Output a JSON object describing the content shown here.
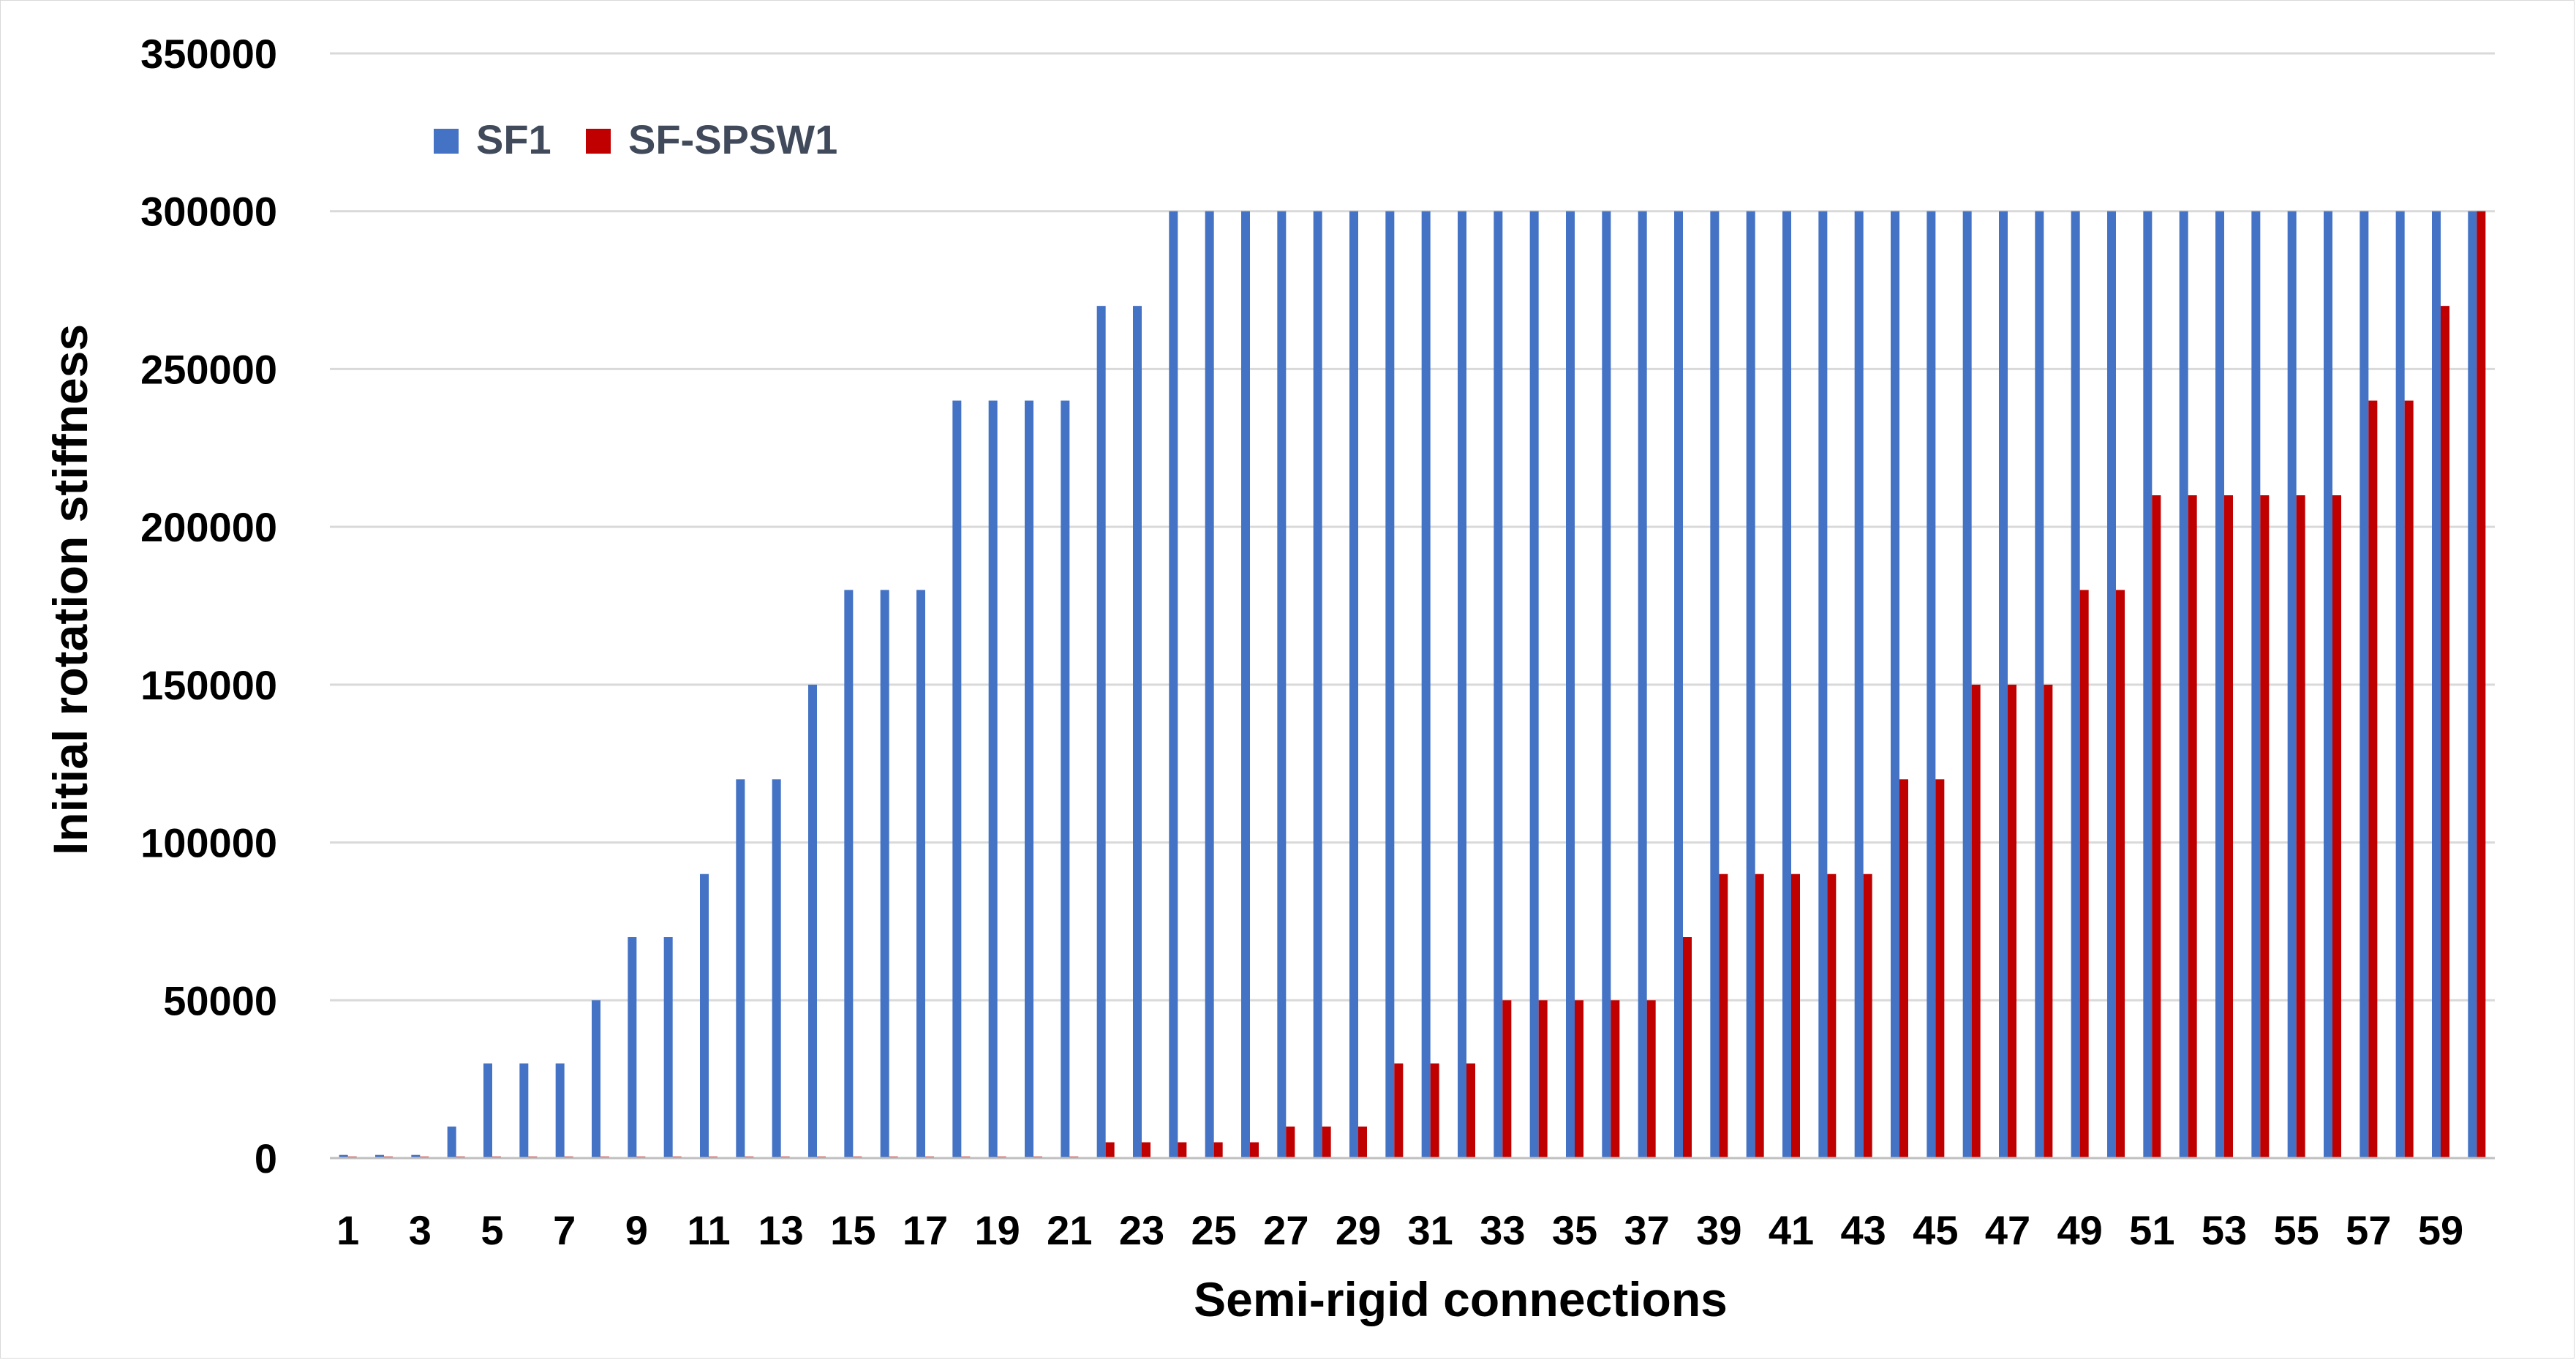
{
  "chart_data": {
    "type": "bar",
    "title": "",
    "xlabel": "Semi-rigid connections",
    "ylabel": "Initial  rotation stiffness",
    "ylim": [
      0,
      350000
    ],
    "yticks": [
      0,
      50000,
      100000,
      150000,
      200000,
      250000,
      300000,
      350000
    ],
    "ytick_labels": [
      "0",
      "50000",
      "100000",
      "150000",
      "200000",
      "250000",
      "300000",
      "350000"
    ],
    "grid": true,
    "legend_position": "top-left",
    "categories": [
      "1",
      "2",
      "3",
      "4",
      "5",
      "6",
      "7",
      "8",
      "9",
      "10",
      "11",
      "12",
      "13",
      "14",
      "15",
      "16",
      "17",
      "18",
      "19",
      "20",
      "21",
      "22",
      "23",
      "24",
      "25",
      "26",
      "27",
      "28",
      "29",
      "30",
      "31",
      "32",
      "33",
      "34",
      "35",
      "36",
      "37",
      "38",
      "39",
      "40",
      "41",
      "42",
      "43",
      "44",
      "45",
      "46",
      "47",
      "48",
      "49",
      "50",
      "51",
      "52",
      "53",
      "54",
      "55",
      "56",
      "57",
      "58",
      "59",
      "60"
    ],
    "xtick_labels": [
      "1",
      "3",
      "5",
      "7",
      "9",
      "11",
      "13",
      "15",
      "17",
      "19",
      "21",
      "23",
      "25",
      "27",
      "29",
      "31",
      "33",
      "35",
      "37",
      "39",
      "41",
      "43",
      "45",
      "47",
      "49",
      "51",
      "53",
      "55",
      "57",
      "59"
    ],
    "series": [
      {
        "name": "SF1",
        "color": "#4472c4",
        "values": [
          1000,
          1000,
          1000,
          10000,
          30000,
          30000,
          30000,
          50000,
          70000,
          70000,
          90000,
          120000,
          120000,
          150000,
          180000,
          180000,
          180000,
          240000,
          240000,
          240000,
          240000,
          270000,
          270000,
          300000,
          300000,
          300000,
          300000,
          300000,
          300000,
          300000,
          300000,
          300000,
          300000,
          300000,
          300000,
          300000,
          300000,
          300000,
          300000,
          300000,
          300000,
          300000,
          300000,
          300000,
          300000,
          300000,
          300000,
          300000,
          300000,
          300000,
          300000,
          300000,
          300000,
          300000,
          300000,
          300000,
          300000,
          300000,
          300000,
          300000
        ]
      },
      {
        "name": "SF-SPSW1",
        "color": "#c00000",
        "values": [
          500,
          500,
          500,
          500,
          500,
          500,
          500,
          500,
          500,
          500,
          500,
          500,
          500,
          500,
          500,
          500,
          500,
          500,
          500,
          500,
          500,
          5000,
          5000,
          5000,
          5000,
          5000,
          10000,
          10000,
          10000,
          30000,
          30000,
          30000,
          50000,
          50000,
          50000,
          50000,
          50000,
          70000,
          90000,
          90000,
          90000,
          90000,
          90000,
          120000,
          120000,
          150000,
          150000,
          150000,
          180000,
          180000,
          210000,
          210000,
          210000,
          210000,
          210000,
          210000,
          240000,
          240000,
          270000,
          300000
        ]
      }
    ]
  }
}
